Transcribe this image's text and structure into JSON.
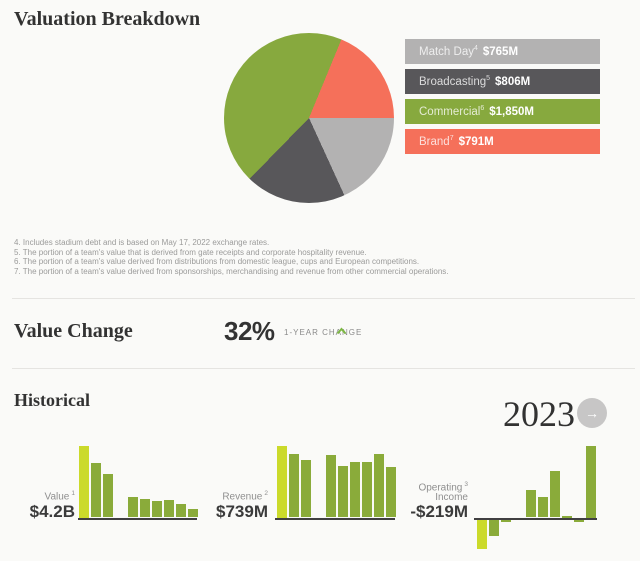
{
  "colors": {
    "bar_highlight": "#cbda2b",
    "bar_regular": "#8aab3a",
    "trend_up": "#7db844",
    "nav_button_bg": "#c7c6c6",
    "axis": "#403f41"
  },
  "valuation": {
    "title": "Valuation Breakdown",
    "legend": [
      {
        "label": "Match Day",
        "ref": "4",
        "value": "$765M",
        "color": "#b3b2b2"
      },
      {
        "label": "Broadcasting",
        "ref": "5",
        "value": "$806M",
        "color": "#58575a"
      },
      {
        "label": "Commercial",
        "ref": "6",
        "value": "$1,850M",
        "color": "#87a93e"
      },
      {
        "label": "Brand",
        "ref": "7",
        "value": "$791M",
        "color": "#f5705a"
      }
    ],
    "footnotes": [
      "4. Includes stadium debt and is based on May 17, 2022 exchange rates.",
      "5. The portion of a team's value that is derived from gate receipts and corporate hospitality revenue.",
      "6. The portion of a team's value derived from distributions from domestic league, cups and European competitions.",
      "7. The portion of a team's value derived from sponsorships, merchandising and revenue from other commercial operations."
    ]
  },
  "value_change": {
    "title": "Value Change",
    "percent": "32%",
    "caption": "1-YEAR CHANGE",
    "trend": "up"
  },
  "historical": {
    "title": "Historical",
    "year": "2023",
    "arrow": "→",
    "metrics": [
      {
        "label": "Value",
        "ref": "1",
        "amount": "$4.2B"
      },
      {
        "label": "Revenue",
        "ref": "2",
        "amount": "$739M"
      },
      {
        "label": "Operating",
        "label2": "Income",
        "ref": "3",
        "amount": "-$219M"
      }
    ]
  },
  "chart_data": [
    {
      "id": "valuation-pie",
      "type": "pie",
      "title": "Valuation Breakdown",
      "unit": "$M",
      "slices": [
        {
          "label": "Match Day",
          "value": 765,
          "color": "#b3b2b2"
        },
        {
          "label": "Broadcasting",
          "value": 806,
          "color": "#58575a"
        },
        {
          "label": "Commercial",
          "value": 1850,
          "color": "#87a93e"
        },
        {
          "label": "Brand",
          "value": 791,
          "color": "#f5705a"
        }
      ],
      "total": 4212,
      "draw_order": [
        2,
        3,
        0,
        1
      ],
      "start_angle_deg": 224.3,
      "legend_position": "right"
    },
    {
      "id": "value-history",
      "type": "bar",
      "title": "Value",
      "unit": "$B",
      "latest_label": "$4.2B",
      "highlight_index": 0,
      "order": "newest (2023, highlighted) at left to oldest at right; null = no bar shown",
      "values": [
        4.2,
        3.2,
        2.55,
        null,
        1.2,
        1.1,
        0.95,
        1.0,
        0.8,
        0.5
      ]
    },
    {
      "id": "revenue-history",
      "type": "bar",
      "title": "Revenue",
      "unit": "$M",
      "latest_label": "$739M",
      "highlight_index": 0,
      "order": "newest (2023, highlighted) at left to oldest at right; null = no bar shown",
      "values": [
        739,
        650,
        590,
        null,
        640,
        530,
        570,
        570,
        650,
        520
      ]
    },
    {
      "id": "operating-income-history",
      "type": "bar",
      "title": "Operating Income",
      "unit": "$M",
      "latest_label": "-$219M",
      "highlight_index": 0,
      "order": "newest (2023, highlighted) at left to oldest at right; null = no bar shown",
      "values": [
        -219,
        -120,
        -15,
        null,
        204,
        151,
        347,
        11,
        -15,
        536
      ]
    }
  ]
}
